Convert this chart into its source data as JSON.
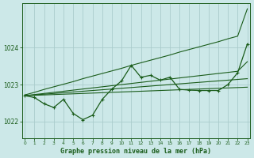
{
  "title": "Graphe pression niveau de la mer (hPa)",
  "hours": [
    0,
    1,
    2,
    3,
    4,
    5,
    6,
    7,
    8,
    9,
    10,
    11,
    12,
    13,
    14,
    15,
    16,
    17,
    18,
    19,
    20,
    21,
    22,
    23
  ],
  "yticks": [
    1022,
    1023,
    1024
  ],
  "ylim": [
    1021.55,
    1025.2
  ],
  "xlim": [
    -0.3,
    23.3
  ],
  "bg_color": "#cce8e8",
  "grid_color": "#aacccc",
  "line_color": "#1a5c1a",
  "font_color": "#1a5c1a",
  "line_width": 0.9,
  "marker_size": 2.8,
  "line_straight_high": [
    1022.72,
    1022.79,
    1022.87,
    1022.94,
    1023.01,
    1023.08,
    1023.16,
    1023.23,
    1023.3,
    1023.37,
    1023.44,
    1023.52,
    1023.59,
    1023.66,
    1023.73,
    1023.8,
    1023.88,
    1023.95,
    1024.02,
    1024.09,
    1024.16,
    1024.24,
    1024.31,
    1025.05
  ],
  "line_straight_low": [
    1022.7,
    1022.71,
    1022.72,
    1022.73,
    1022.74,
    1022.75,
    1022.76,
    1022.77,
    1022.78,
    1022.79,
    1022.8,
    1022.81,
    1022.82,
    1022.83,
    1022.84,
    1022.85,
    1022.86,
    1022.87,
    1022.88,
    1022.89,
    1022.9,
    1022.91,
    1022.92,
    1022.93
  ],
  "line_mid1": [
    1022.7,
    1022.73,
    1022.76,
    1022.79,
    1022.82,
    1022.85,
    1022.88,
    1022.91,
    1022.94,
    1022.97,
    1023.0,
    1023.03,
    1023.06,
    1023.09,
    1023.12,
    1023.15,
    1023.18,
    1023.21,
    1023.24,
    1023.27,
    1023.3,
    1023.33,
    1023.36,
    1023.62
  ],
  "line_mid2": [
    1022.7,
    1022.72,
    1022.74,
    1022.76,
    1022.78,
    1022.8,
    1022.82,
    1022.84,
    1022.86,
    1022.88,
    1022.9,
    1022.92,
    1022.94,
    1022.96,
    1022.98,
    1023.0,
    1023.02,
    1023.04,
    1023.06,
    1023.08,
    1023.1,
    1023.12,
    1023.14,
    1023.16
  ],
  "line_detail": [
    1022.7,
    1022.65,
    1022.48,
    1022.38,
    1022.6,
    1022.22,
    1022.05,
    1022.17,
    1022.6,
    1022.88,
    1023.1,
    1023.52,
    1023.2,
    1023.25,
    1023.12,
    1023.2,
    1022.87,
    1022.85,
    1022.84,
    1022.84,
    1022.84,
    1023.0,
    1023.32,
    1024.1
  ]
}
